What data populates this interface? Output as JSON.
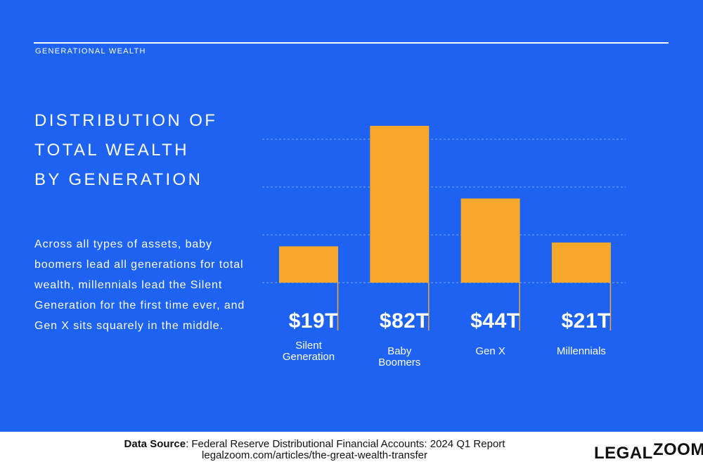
{
  "header": {
    "label": "GENERATIONAL WEALTH"
  },
  "title_lines": [
    "DISTRIBUTION OF",
    "TOTAL WEALTH",
    "BY GENERATION"
  ],
  "description": "Across all types of assets, baby boomers lead all generations for total wealth, millennials lead the Silent Generation for the first time ever, and Gen X sits squarely in the middle.",
  "chart_data": {
    "type": "bar",
    "categories": [
      "Silent Generation",
      "Baby Boomers",
      "Gen X",
      "Millennials"
    ],
    "values": [
      19,
      82,
      44,
      21
    ],
    "value_labels": [
      "$19T",
      "$82T",
      "$44T",
      "$21T"
    ],
    "color": "#f5a82a",
    "ylim": [
      0,
      75
    ],
    "yticks": [
      0,
      25,
      50,
      75
    ],
    "grid": true
  },
  "footer": {
    "source_label": "Data Source",
    "source_text": ": Federal Reserve Distributional Financial Accounts: 2024 Q1 Report",
    "url": "legalzoom.com/articles/the-great-wealth-transfer",
    "logo_left": "LEGAL",
    "logo_right": "ZOOM"
  }
}
